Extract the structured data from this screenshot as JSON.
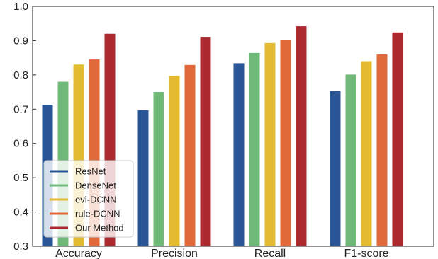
{
  "chart_data": {
    "type": "bar",
    "title": "",
    "xlabel": "",
    "ylabel": "",
    "categories": [
      "Accuracy",
      "Precision",
      "Recall",
      "F1-score"
    ],
    "series": [
      {
        "name": "ResNet",
        "color": "#2a5597",
        "values": [
          0.713,
          0.697,
          0.834,
          0.753
        ]
      },
      {
        "name": "DenseNet",
        "color": "#6fba78",
        "values": [
          0.78,
          0.75,
          0.864,
          0.801
        ]
      },
      {
        "name": "evi-DCNN",
        "color": "#e3bb31",
        "values": [
          0.83,
          0.797,
          0.893,
          0.84
        ]
      },
      {
        "name": "rule-DCNN",
        "color": "#e06a3b",
        "values": [
          0.845,
          0.829,
          0.903,
          0.86
        ]
      },
      {
        "name": "Our Method",
        "color": "#aa2a30",
        "values": [
          0.92,
          0.911,
          0.942,
          0.924
        ]
      }
    ],
    "ylim": [
      0.3,
      1.0
    ],
    "yticks": [
      "0.3",
      "0.4",
      "0.5",
      "0.6",
      "0.7",
      "0.8",
      "0.9",
      "1.0"
    ],
    "grid": false,
    "legend_position": "bottom-left"
  }
}
